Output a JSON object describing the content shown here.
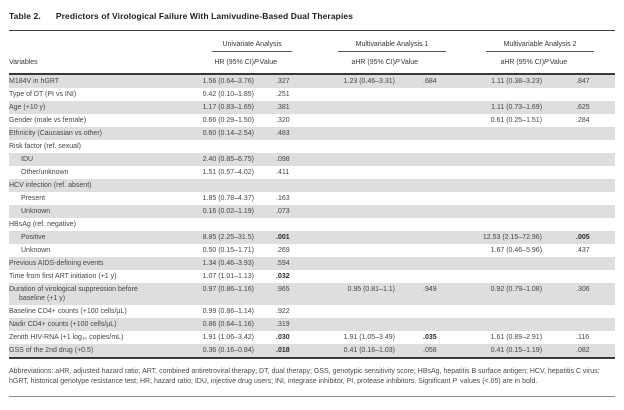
{
  "title": {
    "label": "Table 2.",
    "text": "Predictors of Virological Failure With Lamivudine-Based Dual Therapies"
  },
  "header": {
    "groups": [
      "Univariate Analysis",
      "Multivariable Analysis 1",
      "Multivariable Analysis 2"
    ],
    "variables": "Variables",
    "hr": "HR (95% CI)",
    "ahr": "aHR (95% CI)",
    "p_italic": "P",
    "p_rest": "Value"
  },
  "rows": [
    {
      "label": "M184V in hGRT",
      "indent": false,
      "shaded": true,
      "cells": [
        "1.56 (0.64–3.76)",
        ".327",
        "1.23 (0.46–3.31)",
        ".684",
        "1.11 (0.38–3.23)",
        ".847"
      ],
      "bold": []
    },
    {
      "label": "Type of DT (PI vs INI)",
      "indent": false,
      "shaded": false,
      "cells": [
        "0.42 (0.10–1.85)",
        ".251",
        "",
        "",
        "",
        ""
      ],
      "bold": []
    },
    {
      "label": "Age (+10 y)",
      "indent": false,
      "shaded": true,
      "cells": [
        "1.17 (0.83–1.65)",
        ".381",
        "",
        "",
        "1.11 (0.73–1.69)",
        ".625"
      ],
      "bold": []
    },
    {
      "label": "Gender (male vs female)",
      "indent": false,
      "shaded": false,
      "cells": [
        "0.66 (0.29–1.50)",
        ".320",
        "",
        "",
        "0.61 (0.25–1.51)",
        ".284"
      ],
      "bold": []
    },
    {
      "label": "Ethnicity (Caucasian vs other)",
      "indent": false,
      "shaded": true,
      "cells": [
        "0.60 (0.14–2.54)",
        ".483",
        "",
        "",
        "",
        ""
      ],
      "bold": []
    },
    {
      "label": "Risk factor (ref. sexual)",
      "indent": false,
      "shaded": false,
      "cells": [
        "",
        "",
        "",
        "",
        "",
        ""
      ],
      "bold": []
    },
    {
      "label": "IDU",
      "indent": true,
      "shaded": true,
      "cells": [
        "2.40 (0.85–6.75)",
        ".098",
        "",
        "",
        "",
        ""
      ],
      "bold": []
    },
    {
      "label": "Other/unknown",
      "indent": true,
      "shaded": false,
      "cells": [
        "1.51 (0.57–4.02)",
        ".411",
        "",
        "",
        "",
        ""
      ],
      "bold": []
    },
    {
      "label": "HCV infection (ref. absent)",
      "indent": false,
      "shaded": true,
      "cells": [
        "",
        "",
        "",
        "",
        "",
        ""
      ],
      "bold": []
    },
    {
      "label": "Present",
      "indent": true,
      "shaded": false,
      "cells": [
        "1.85 (0.78–4.37)",
        ".163",
        "",
        "",
        "",
        ""
      ],
      "bold": []
    },
    {
      "label": "Unknown",
      "indent": true,
      "shaded": true,
      "cells": [
        "0.16 (0.02–1.19)",
        ".073",
        "",
        "",
        "",
        ""
      ],
      "bold": []
    },
    {
      "label": "HBsAg (ref. negative)",
      "indent": false,
      "shaded": false,
      "cells": [
        "",
        "",
        "",
        "",
        "",
        ""
      ],
      "bold": []
    },
    {
      "label": "Positive",
      "indent": true,
      "shaded": true,
      "cells": [
        "8.85 (2.25–31.5)",
        ".001",
        "",
        "",
        "12.53 (2.15–72.96)",
        ".005"
      ],
      "bold": [
        1,
        5
      ]
    },
    {
      "label": "Unknown",
      "indent": true,
      "shaded": false,
      "cells": [
        "0.50 (0.15–1.71)",
        ".269",
        "",
        "",
        "1.67 (0.46–5.96)",
        ".437"
      ],
      "bold": []
    },
    {
      "label": "Previous AIDS-defining events",
      "indent": false,
      "shaded": true,
      "cells": [
        "1.34 (0.46–3.93)",
        ".594",
        "",
        "",
        "",
        ""
      ],
      "bold": []
    },
    {
      "label": "Time from first ART initiation (+1 y)",
      "indent": false,
      "shaded": false,
      "cells": [
        "1.07 (1.01–1.13)",
        ".032",
        "",
        "",
        "",
        ""
      ],
      "bold": [
        1
      ]
    },
    {
      "label": "Duration of virological suppression before",
      "label2": "baseline (+1 y)",
      "indent": false,
      "shaded": true,
      "cells": [
        "0.97 (0.86–1.16)",
        ".965",
        "0.95 (0.81–1.1)",
        ".949",
        "0.92 (0.79–1.08)",
        ".306"
      ],
      "bold": []
    },
    {
      "label": "Baseline CD4+ counts (+100 cells/µL)",
      "indent": false,
      "shaded": false,
      "cells": [
        "0.99 (0.86–1.14)",
        ".922",
        "",
        "",
        "",
        ""
      ],
      "bold": []
    },
    {
      "label": "Nadir CD4+ counts (+100 cells/µL)",
      "indent": false,
      "shaded": true,
      "cells": [
        "0.86 (0.64–1.16)",
        ".319",
        "",
        "",
        "",
        ""
      ],
      "bold": []
    },
    {
      "label": "Zenith HIV-RNA (+1 log₁₀ copies/mL)",
      "indent": false,
      "shaded": false,
      "cells": [
        "1.91 (1.06–3.42)",
        ".030",
        "1.91 (1.05–3.49)",
        ".035",
        "1.61 (0.89–2.91)",
        ".116"
      ],
      "bold": [
        1,
        3
      ]
    },
    {
      "label": "GSS of the 2nd drug (+0.5)",
      "indent": false,
      "shaded": true,
      "cells": [
        "0.36 (0.16–0.84)",
        ".018",
        "0.41 (0.16–1.03)",
        ".058",
        "0.41 (0.15–1.19)",
        ".082"
      ],
      "bold": [
        1
      ]
    }
  ],
  "footnote": {
    "before": "Abbreviations: aHR, adjusted hazard ratio; ART, combined antiretroviral therapy; DT, dual therapy; GSS, genotypic sensitivity score; HBsAg, hepatitis B surface antigen; HCV, hepatitis C virus; hGRT, historical genotype resistance test; HR, hazard ratio; IDU, injective drug users; INI, integrase inhibitor, PI, protease inhibitors. Significant ",
    "italic": "P",
    "after": " values (<.05) are in bold."
  }
}
